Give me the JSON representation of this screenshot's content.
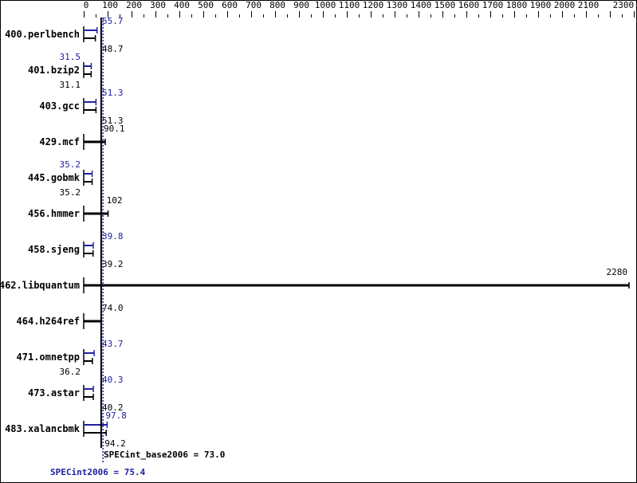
{
  "chart_data": {
    "type": "bar",
    "orientation": "horizontal",
    "x_ticks": [
      0,
      100,
      200,
      300,
      400,
      500,
      600,
      700,
      800,
      900,
      1000,
      1100,
      1200,
      1300,
      1400,
      1500,
      1600,
      1700,
      1800,
      1900,
      2000,
      2100,
      2300
    ],
    "xlim": [
      0,
      2300
    ],
    "categories": [
      "400.perlbench",
      "401.bzip2",
      "403.gcc",
      "429.mcf",
      "445.gobmk",
      "456.hmmer",
      "458.sjeng",
      "462.libquantum",
      "464.h264ref",
      "471.omnetpp",
      "473.astar",
      "483.xalancbmk"
    ],
    "series": [
      {
        "name": "SPECint_base2006",
        "color": "#000000",
        "values": [
          48.7,
          31.1,
          51.3,
          90.1,
          35.2,
          102,
          39.2,
          2280,
          74.0,
          36.2,
          40.2,
          94.2
        ],
        "labels": [
          "48.7",
          "31.1",
          "51.3",
          "90.1",
          "35.2",
          "102",
          "39.2",
          "2280",
          "74.0",
          "36.2",
          "40.2",
          "94.2"
        ]
      },
      {
        "name": "SPECint2006",
        "color": "#2020a0",
        "values": [
          55.7,
          31.5,
          51.3,
          null,
          35.2,
          null,
          39.8,
          null,
          null,
          43.7,
          40.3,
          97.8
        ],
        "labels": [
          "55.7",
          "31.5",
          "51.3",
          null,
          "35.2",
          null,
          "39.8",
          null,
          null,
          "43.7",
          "40.3",
          "97.8"
        ]
      }
    ],
    "reference_lines": [
      {
        "value": 73.0,
        "label": "SPECint_base2006 = 73.0",
        "color": "#000000",
        "style": "solid"
      },
      {
        "value": 75.4,
        "label": "SPECint2006 = 75.4",
        "color": "#2020a0",
        "style": "dotted"
      }
    ]
  }
}
